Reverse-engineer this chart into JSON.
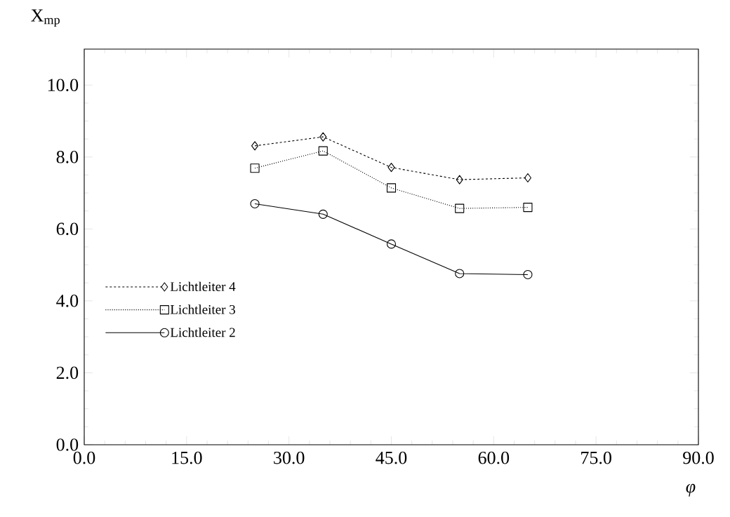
{
  "chart_data": {
    "type": "line",
    "xlabel": "φ",
    "ylabel": "X$_{mp}$",
    "x": [
      25,
      35,
      45,
      55,
      65
    ],
    "series": [
      {
        "name": "Lichtleiter 4",
        "color": "#000000",
        "marker": "diamond",
        "line_style": "dashed",
        "values": [
          8.31,
          8.56,
          7.71,
          7.37,
          7.42
        ]
      },
      {
        "name": "Lichtleiter 3",
        "color": "#000000",
        "marker": "square",
        "line_style": "dotted",
        "values": [
          7.69,
          8.17,
          7.14,
          6.57,
          6.6
        ]
      },
      {
        "name": "Lichtleiter 2",
        "color": "#000000",
        "marker": "circle",
        "line_style": "solid",
        "values": [
          6.7,
          6.41,
          5.58,
          4.76,
          4.73
        ]
      }
    ],
    "xlim": [
      0,
      90
    ],
    "ylim": [
      0,
      11
    ],
    "xticks": [
      {
        "value": 0,
        "label": "0.0"
      },
      {
        "value": 15,
        "label": "15.0"
      },
      {
        "value": 30,
        "label": "30.0"
      },
      {
        "value": 45,
        "label": "45.0"
      },
      {
        "value": 60,
        "label": "60.0"
      },
      {
        "value": 75,
        "label": "75.0"
      },
      {
        "value": 90,
        "label": "90.0"
      }
    ],
    "yticks": [
      {
        "value": 0,
        "label": "0.0"
      },
      {
        "value": 2,
        "label": "2.0"
      },
      {
        "value": 4,
        "label": "4.0"
      },
      {
        "value": 6,
        "label": "6.0"
      },
      {
        "value": 8,
        "label": "8.0"
      },
      {
        "value": 10,
        "label": "10.0"
      }
    ],
    "grid": false,
    "legend": "left"
  }
}
